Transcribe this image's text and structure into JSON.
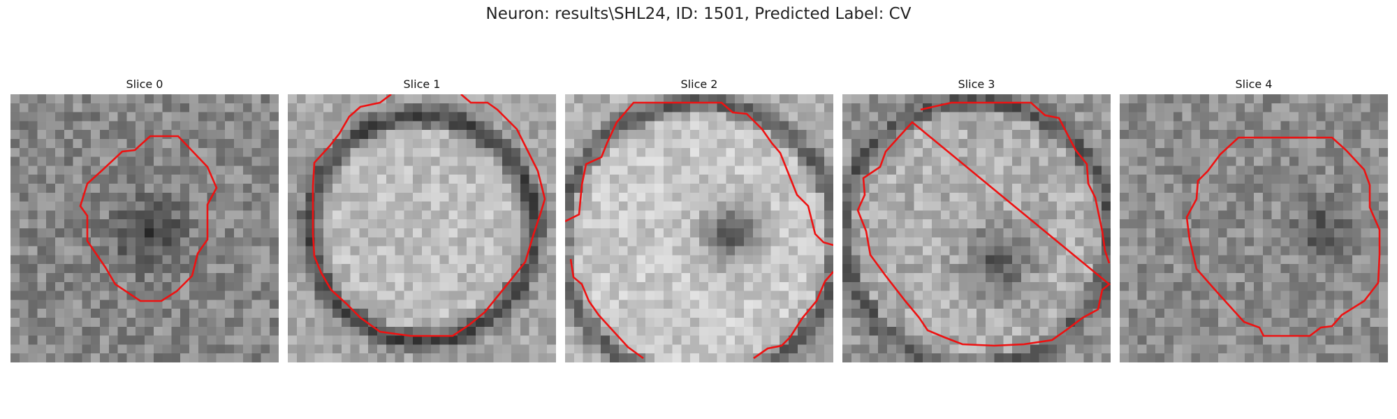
{
  "figure": {
    "title": "Neuron: results\\SHL24, ID: 1501, Predicted Label: CV",
    "contour_color": "#ee1111"
  },
  "panels": [
    {
      "title": "Slice 0"
    },
    {
      "title": "Slice 1"
    },
    {
      "title": "Slice 2"
    },
    {
      "title": "Slice 3"
    },
    {
      "title": "Slice 4"
    }
  ]
}
